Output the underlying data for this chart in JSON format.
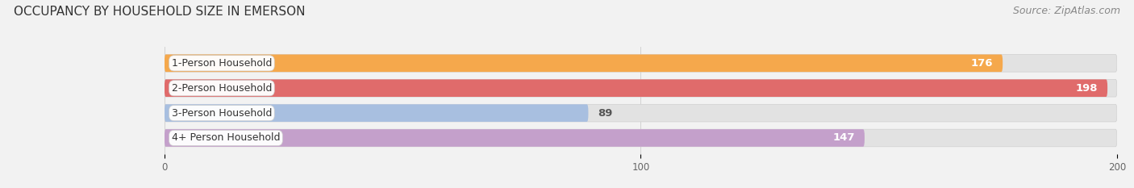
{
  "title": "OCCUPANCY BY HOUSEHOLD SIZE IN EMERSON",
  "source": "Source: ZipAtlas.com",
  "categories": [
    "1-Person Household",
    "2-Person Household",
    "3-Person Household",
    "4+ Person Household"
  ],
  "values": [
    176,
    198,
    89,
    147
  ],
  "bar_colors": [
    "#F5A84C",
    "#E06B6B",
    "#A8BFE0",
    "#C4A0CB"
  ],
  "background_color": "#f2f2f2",
  "bar_bg_color": "#e2e2e2",
  "xlim_data": [
    0,
    200
  ],
  "xticks": [
    0,
    100,
    200
  ],
  "title_fontsize": 11,
  "source_fontsize": 9,
  "label_fontsize": 9,
  "value_fontsize": 9.5
}
